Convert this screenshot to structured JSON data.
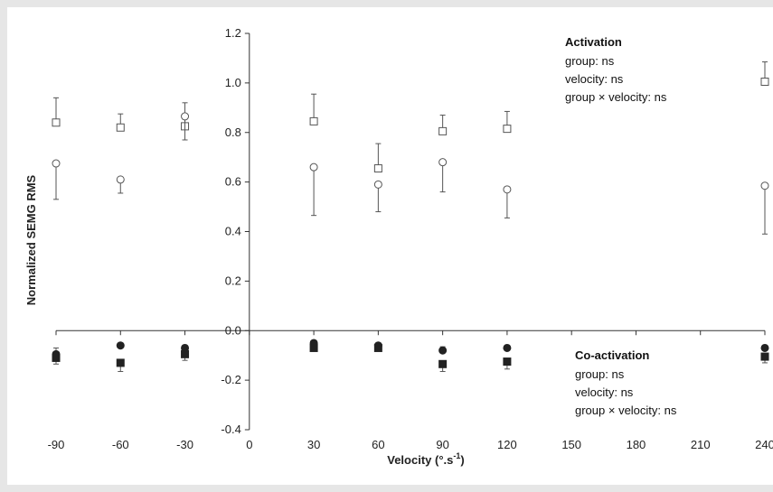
{
  "chart_data": {
    "type": "scatter",
    "xlabel": "Velocity (°.s",
    "xlabel_superscript": "-1",
    "xlabel_suffix": ")",
    "ylabel": "Normalized SEMG RMS",
    "xlim": [
      -90,
      240
    ],
    "ylim": [
      -0.4,
      1.2
    ],
    "x_ticks": [
      -90,
      -60,
      -30,
      0,
      30,
      60,
      90,
      120,
      150,
      180,
      210,
      240
    ],
    "x_tick_labels": [
      "-90",
      "-60",
      "-30",
      "0",
      "30",
      "60",
      "90",
      "120",
      "150",
      "180",
      "210",
      "240"
    ],
    "y_ticks": [
      -0.4,
      -0.2,
      0.0,
      0.2,
      0.4,
      0.6,
      0.8,
      1.0,
      1.2
    ],
    "y_tick_labels": [
      "-0.4",
      "-0.2",
      "0.0",
      "0.2",
      "0.4",
      "0.6",
      "0.8",
      "1.0",
      "1.2"
    ],
    "grid": false,
    "series": [
      {
        "marker": "open-square",
        "error_direction": "up",
        "x": [
          -90,
          -60,
          -30,
          30,
          60,
          90,
          120,
          240
        ],
        "y": [
          0.84,
          0.82,
          0.825,
          0.845,
          0.655,
          0.805,
          0.815,
          1.005
        ],
        "err": [
          0.1,
          0.055,
          0.095,
          0.11,
          0.1,
          0.065,
          0.07,
          0.08
        ]
      },
      {
        "marker": "open-circle",
        "error_direction": "down",
        "x": [
          -90,
          -60,
          -30,
          30,
          60,
          90,
          120,
          240
        ],
        "y": [
          0.675,
          0.61,
          0.865,
          0.66,
          0.59,
          0.68,
          0.57,
          0.585
        ],
        "err": [
          0.145,
          0.055,
          0.095,
          0.195,
          0.11,
          0.12,
          0.115,
          0.195
        ]
      },
      {
        "marker": "filled-circle",
        "error_direction": "up",
        "x": [
          -90,
          -60,
          -30,
          30,
          60,
          90,
          120,
          240
        ],
        "y": [
          -0.095,
          -0.06,
          -0.07,
          -0.05,
          -0.06,
          -0.08,
          -0.07,
          -0.07
        ],
        "err": [
          0.025,
          0.0,
          0.0,
          0.0,
          0.0,
          0.015,
          0.0,
          0.0
        ]
      },
      {
        "marker": "filled-square",
        "error_direction": "down",
        "x": [
          -90,
          -60,
          -30,
          30,
          60,
          90,
          120,
          240
        ],
        "y": [
          -0.11,
          -0.13,
          -0.095,
          -0.07,
          -0.07,
          -0.135,
          -0.125,
          -0.105
        ],
        "err": [
          0.025,
          0.035,
          0.025,
          0.0,
          0.0,
          0.03,
          0.03,
          0.025
        ]
      }
    ],
    "annotations": [
      {
        "title": "Activation",
        "lines": [
          "group: ns",
          "velocity: ns",
          "group × velocity: ns"
        ]
      },
      {
        "title": "Co-activation",
        "lines": [
          "group: ns",
          "velocity: ns",
          "group × velocity: ns"
        ]
      }
    ]
  }
}
